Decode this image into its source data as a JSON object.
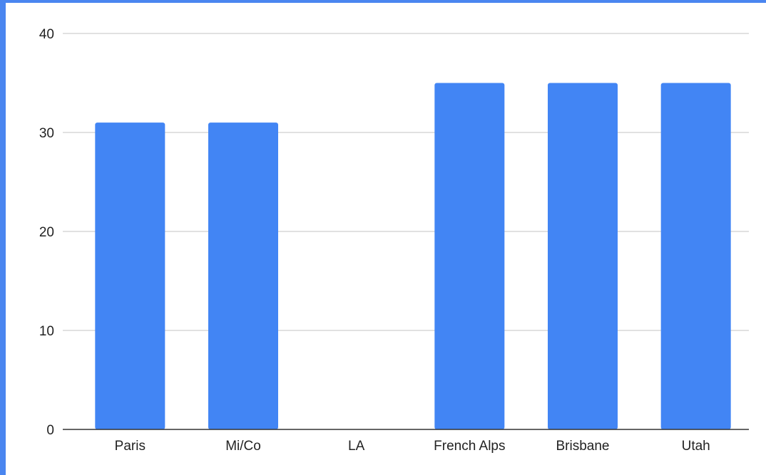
{
  "chart_data": {
    "type": "bar",
    "categories": [
      "Paris",
      "Mi/Co",
      "LA",
      "French Alps",
      "Brisbane",
      "Utah"
    ],
    "values": [
      31,
      31,
      0,
      35,
      35,
      35
    ],
    "ylim": [
      0,
      40
    ],
    "yticks": [
      0,
      10,
      20,
      30,
      40
    ],
    "grid": true,
    "legend": "none",
    "title": "",
    "xlabel": "",
    "ylabel": "",
    "bar_color": "#4285f4",
    "frame_color": "#4a86f0"
  }
}
